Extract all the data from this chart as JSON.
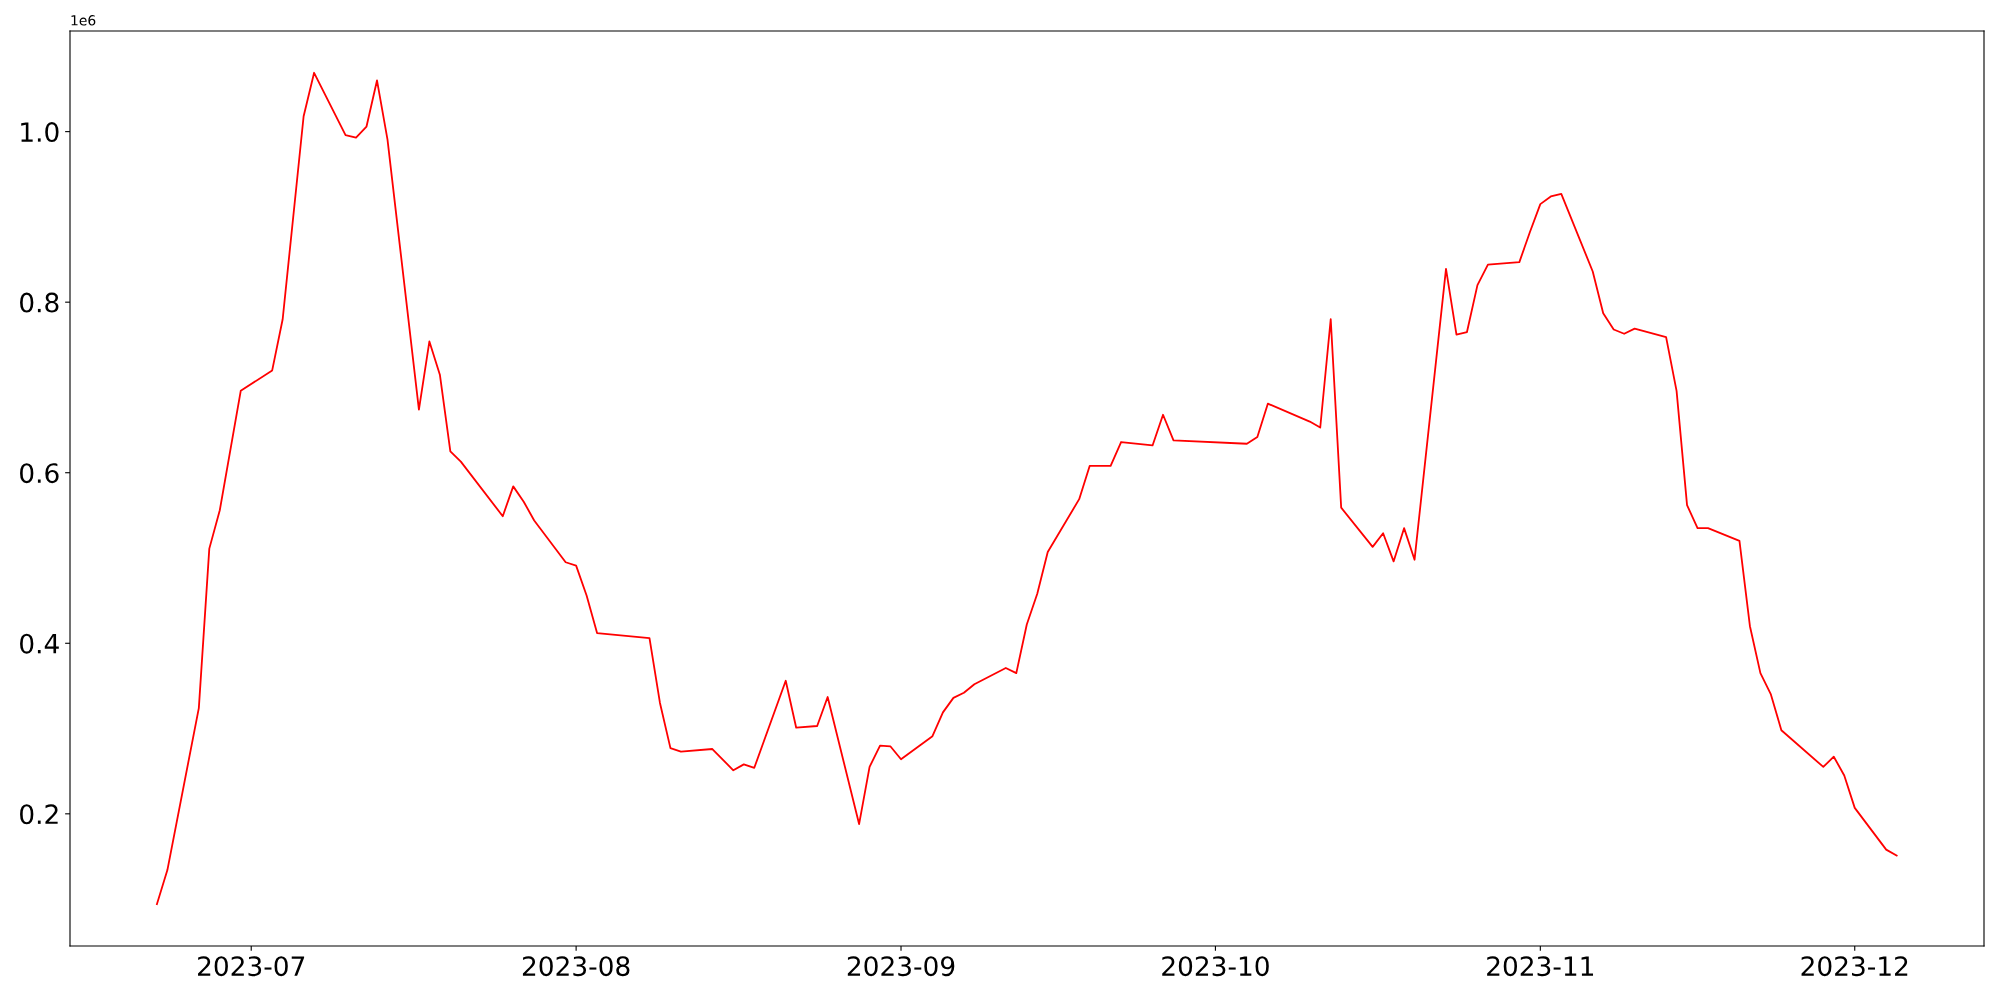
{
  "chart_data": {
    "type": "line",
    "x": [
      "2023-06-22",
      "2023-06-23",
      "2023-06-26",
      "2023-06-27",
      "2023-06-28",
      "2023-06-30",
      "2023-07-03",
      "2023-07-04",
      "2023-07-06",
      "2023-07-07",
      "2023-07-10",
      "2023-07-11",
      "2023-07-12",
      "2023-07-13",
      "2023-07-14",
      "2023-07-17",
      "2023-07-18",
      "2023-07-19",
      "2023-07-20",
      "2023-07-21",
      "2023-07-25",
      "2023-07-26",
      "2023-07-27",
      "2023-07-28",
      "2023-07-31",
      "2023-08-01",
      "2023-08-02",
      "2023-08-03",
      "2023-08-08",
      "2023-08-09",
      "2023-08-10",
      "2023-08-11",
      "2023-08-14",
      "2023-08-16",
      "2023-08-17",
      "2023-08-18",
      "2023-08-21",
      "2023-08-22",
      "2023-08-24",
      "2023-08-25",
      "2023-08-28",
      "2023-08-29",
      "2023-08-30",
      "2023-08-31",
      "2023-09-01",
      "2023-09-04",
      "2023-09-05",
      "2023-09-06",
      "2023-09-07",
      "2023-09-08",
      "2023-09-11",
      "2023-09-12",
      "2023-09-13",
      "2023-09-14",
      "2023-09-15",
      "2023-09-18",
      "2023-09-19",
      "2023-09-21",
      "2023-09-22",
      "2023-09-25",
      "2023-09-26",
      "2023-09-27",
      "2023-10-04",
      "2023-10-05",
      "2023-10-06",
      "2023-10-10",
      "2023-10-11",
      "2023-10-12",
      "2023-10-13",
      "2023-10-16",
      "2023-10-17",
      "2023-10-18",
      "2023-10-19",
      "2023-10-20",
      "2023-10-23",
      "2023-10-24",
      "2023-10-25",
      "2023-10-26",
      "2023-10-27",
      "2023-10-30",
      "2023-10-31",
      "2023-11-01",
      "2023-11-02",
      "2023-11-03",
      "2023-11-06",
      "2023-11-07",
      "2023-11-08",
      "2023-11-09",
      "2023-11-10",
      "2023-11-13",
      "2023-11-14",
      "2023-11-15",
      "2023-11-16",
      "2023-11-17",
      "2023-11-20",
      "2023-11-21",
      "2023-11-22",
      "2023-11-23",
      "2023-11-24",
      "2023-11-28",
      "2023-11-29",
      "2023-11-30",
      "2023-12-01",
      "2023-12-04",
      "2023-12-05"
    ],
    "series": [
      {
        "color": "#ff0000",
        "values": [
          0.094,
          0.134,
          0.324,
          0.511,
          0.556,
          0.696,
          0.72,
          0.78,
          1.018,
          1.069,
          0.996,
          0.993,
          1.006,
          1.06,
          0.991,
          0.674,
          0.754,
          0.715,
          0.625,
          0.613,
          0.549,
          0.584,
          0.566,
          0.544,
          0.495,
          0.491,
          0.456,
          0.412,
          0.406,
          0.33,
          0.277,
          0.273,
          0.276,
          0.251,
          0.258,
          0.254,
          0.356,
          0.301,
          0.303,
          0.337,
          0.188,
          0.255,
          0.28,
          0.279,
          0.264,
          0.291,
          0.319,
          0.336,
          0.342,
          0.352,
          0.371,
          0.365,
          0.422,
          0.458,
          0.507,
          0.569,
          0.608,
          0.608,
          0.636,
          0.632,
          0.668,
          0.638,
          0.634,
          0.642,
          0.681,
          0.66,
          0.653,
          0.78,
          0.559,
          0.513,
          0.529,
          0.496,
          0.535,
          0.498,
          0.839,
          0.762,
          0.765,
          0.82,
          0.844,
          0.847,
          0.882,
          0.915,
          0.924,
          0.927,
          0.836,
          0.787,
          0.768,
          0.763,
          0.769,
          0.759,
          0.696,
          0.562,
          0.535,
          0.535,
          0.52,
          0.42,
          0.365,
          0.34,
          0.298,
          0.255,
          0.267,
          0.245,
          0.207,
          0.158,
          0.151
        ]
      }
    ],
    "xlim": [
      "2023-06-13T17:00",
      "2023-12-13T08:00"
    ],
    "xticks": [
      {
        "value": "2023-07-01",
        "label": "2023-07"
      },
      {
        "value": "2023-08-01",
        "label": "2023-08"
      },
      {
        "value": "2023-09-01",
        "label": "2023-09"
      },
      {
        "value": "2023-10-01",
        "label": "2023-10"
      },
      {
        "value": "2023-11-01",
        "label": "2023-11"
      },
      {
        "value": "2023-12-01",
        "label": "2023-12"
      }
    ],
    "ylim": [
      0.045,
      1.118
    ],
    "yticks": [
      0.2,
      0.4,
      0.6,
      0.8,
      {
        "value": 1.0,
        "label": "1.0"
      }
    ],
    "annotations": [
      "1e6"
    ],
    "grid": false,
    "marker": "none",
    "line_style": "solid"
  }
}
